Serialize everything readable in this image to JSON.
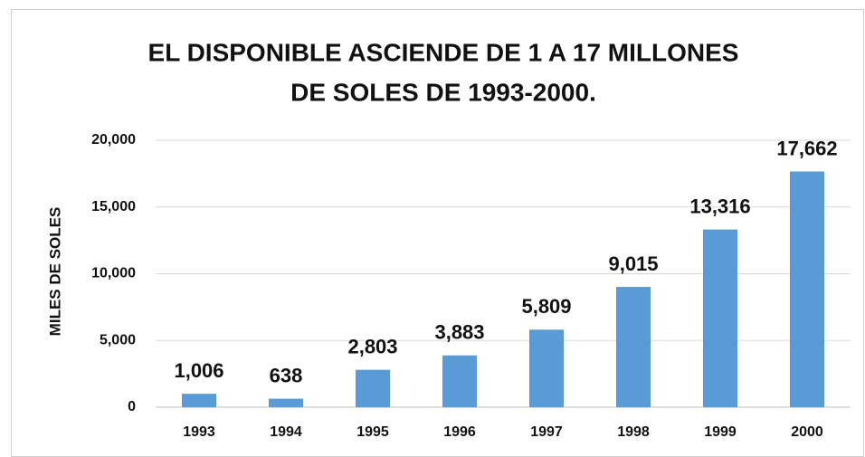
{
  "chart_data": {
    "type": "bar",
    "title": [
      "EL DISPONIBLE ASCIENDE DE 1 A 17 MILLONES",
      "DE SOLES DE 1993-2000."
    ],
    "y_label": "MILES DE SOLES",
    "categories": [
      "1993",
      "1994",
      "1995",
      "1996",
      "1997",
      "1998",
      "1999",
      "2000"
    ],
    "values": [
      1006,
      638,
      2803,
      3883,
      5809,
      9015,
      13316,
      17662
    ],
    "value_labels": [
      "1,006",
      "638",
      "2,803",
      "3,883",
      "5,809",
      "9,015",
      "13,316",
      "17,662"
    ],
    "color": "#5b9bd5",
    "ylim": [
      0,
      20000
    ],
    "yticks": [
      0,
      {
        "value": 5000,
        "label": "5,000"
      },
      {
        "value": 10000,
        "label": "10,000"
      },
      {
        "value": 15000,
        "label": "15,000"
      },
      {
        "value": 20000,
        "label": "20,000"
      }
    ],
    "grid": true
  }
}
